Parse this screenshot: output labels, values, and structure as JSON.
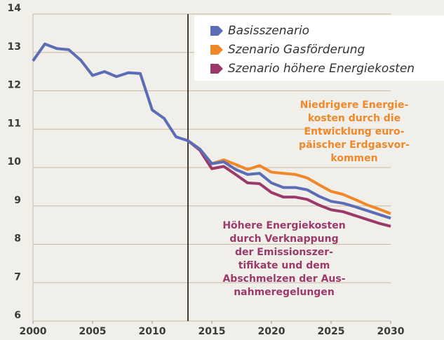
{
  "chart_data": {
    "type": "line",
    "x": [
      2000,
      2001,
      2002,
      2003,
      2004,
      2005,
      2006,
      2007,
      2008,
      2009,
      2010,
      2011,
      2012,
      2013,
      2014,
      2015,
      2016,
      2017,
      2018,
      2019,
      2020,
      2021,
      2022,
      2023,
      2024,
      2025,
      2026,
      2027,
      2028,
      2029,
      2030
    ],
    "series": [
      {
        "name": "Basisszenario",
        "color": "#5b6db4",
        "values": [
          12.78,
          13.22,
          13.1,
          13.07,
          12.8,
          12.4,
          12.5,
          12.37,
          12.47,
          12.45,
          11.5,
          11.28,
          10.8,
          10.7,
          10.48,
          10.1,
          10.15,
          9.95,
          9.82,
          9.85,
          9.6,
          9.48,
          9.48,
          9.42,
          9.25,
          9.12,
          9.07,
          8.98,
          8.88,
          8.78,
          8.68
        ]
      },
      {
        "name": "Szenario Gasförderung",
        "color": "#f0882a",
        "values": [
          null,
          null,
          null,
          null,
          null,
          null,
          null,
          null,
          null,
          null,
          null,
          null,
          null,
          10.7,
          10.48,
          10.1,
          10.2,
          10.08,
          9.95,
          10.05,
          9.88,
          9.85,
          9.82,
          9.73,
          9.55,
          9.38,
          9.3,
          9.17,
          9.03,
          8.92,
          8.8
        ]
      },
      {
        "name": "Szenario höhere Energiekosten",
        "color": "#9b3a6a",
        "values": [
          null,
          null,
          null,
          null,
          null,
          null,
          null,
          null,
          null,
          null,
          null,
          null,
          null,
          10.7,
          10.45,
          9.97,
          10.03,
          9.82,
          9.6,
          9.58,
          9.35,
          9.23,
          9.23,
          9.17,
          9.02,
          8.9,
          8.85,
          8.75,
          8.65,
          8.55,
          8.47
        ]
      }
    ],
    "xlim": [
      2000,
      2030
    ],
    "xticks": [
      2000,
      2005,
      2010,
      2015,
      2020,
      2025,
      2030
    ],
    "ylim": [
      6,
      14
    ],
    "yticks": [
      6,
      7,
      8,
      9,
      10,
      11,
      12,
      13,
      14
    ],
    "grid": true,
    "reference_x": 2013,
    "legend": "upper right",
    "annotations": [
      {
        "color": "#f0882a",
        "lines": [
          "Niedrigere Energie-",
          "kosten durch die",
          "Entwicklung euro-",
          "päischer Erdgasvor-",
          "kommen"
        ]
      },
      {
        "color": "#9b3a6a",
        "lines": [
          "Höhere Energiekosten",
          "durch Verknappung",
          "der Emissionszer-",
          "tifikate und dem",
          "Abschmelzen der Aus-",
          "nahmeregelungen"
        ]
      }
    ]
  }
}
